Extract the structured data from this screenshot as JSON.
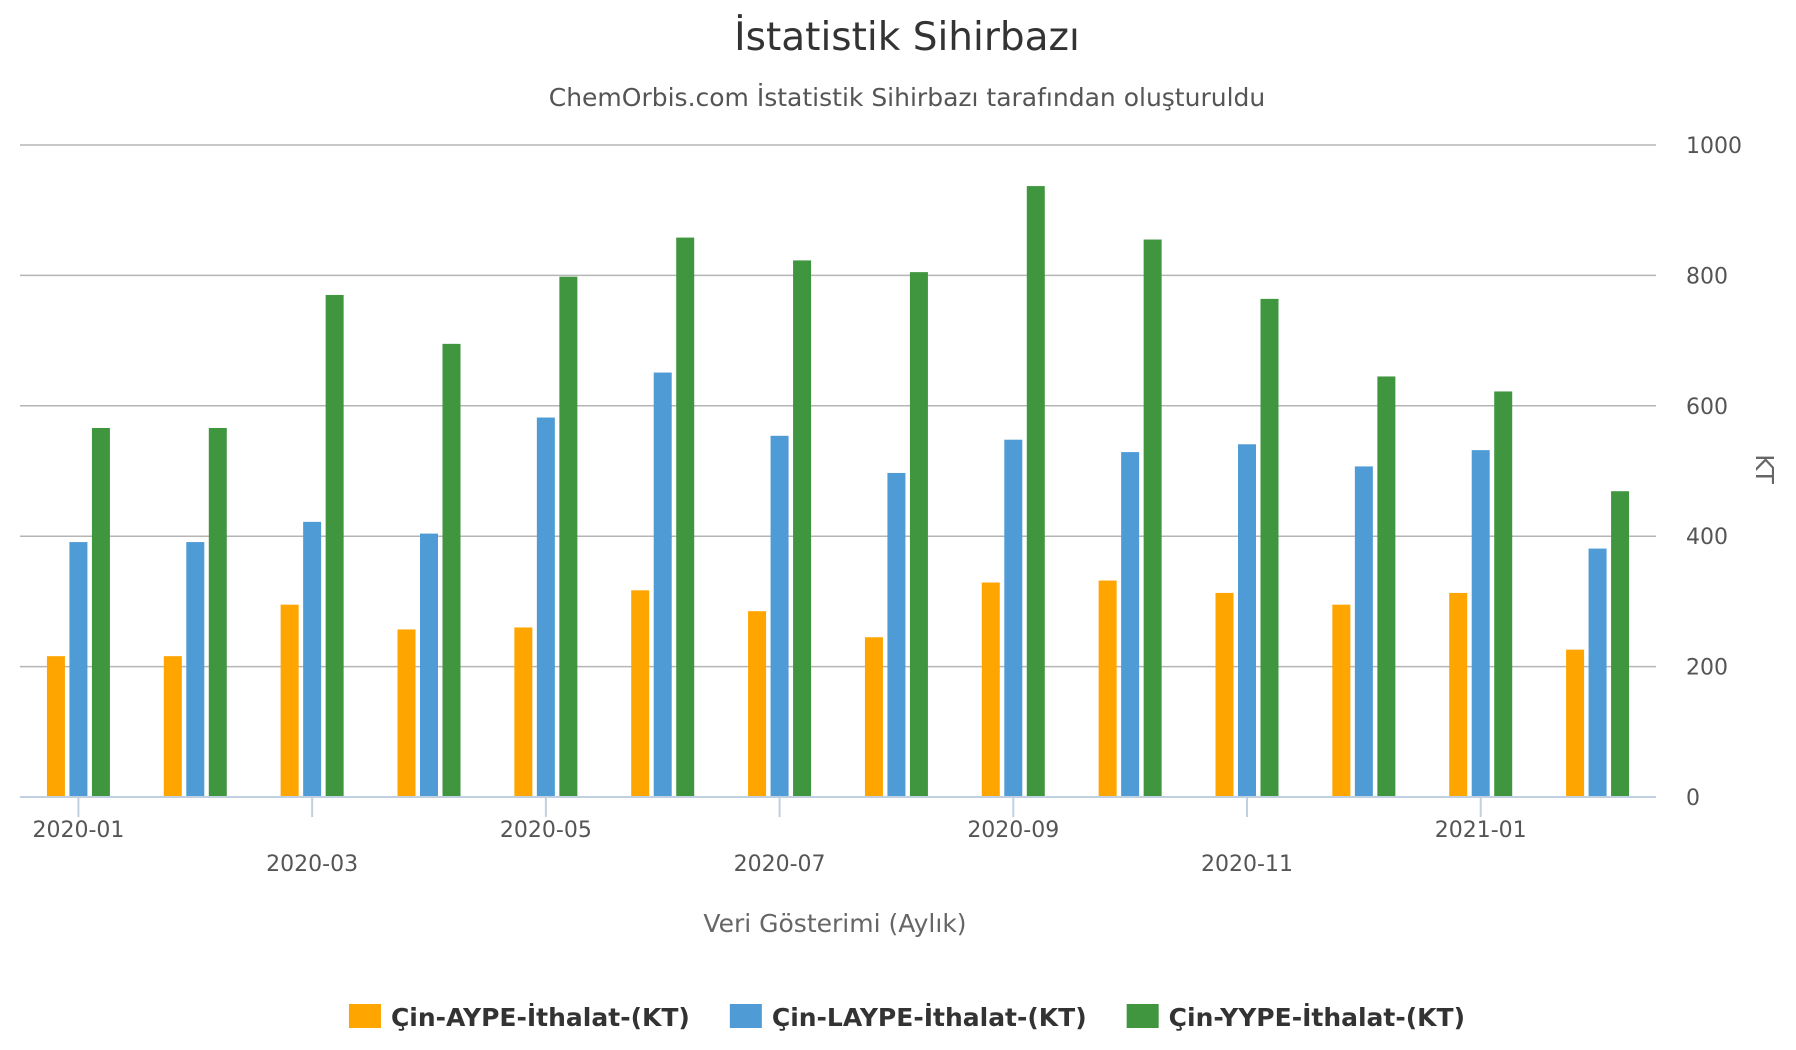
{
  "chart_data": {
    "type": "bar",
    "title": "İstatistik Sihirbazı",
    "subtitle": "ChemOrbis.com İstatistik Sihirbazı tarafından oluşturuldu",
    "xlabel": "Veri Gösterimi (Aylık)",
    "ylabel": "KT",
    "ylim": [
      0,
      1000
    ],
    "yticks": [
      0,
      200,
      400,
      600,
      800,
      1000
    ],
    "y_axis_side": "right",
    "grid": true,
    "legend_position": "bottom",
    "categories": [
      "2020-01",
      "2020-02",
      "2020-03",
      "2020-04",
      "2020-05",
      "2020-06",
      "2020-07",
      "2020-08",
      "2020-09",
      "2020-10",
      "2020-11",
      "2020-12",
      "2021-01",
      "2021-02"
    ],
    "xtick_labels": [
      "2020-01",
      "2020-03",
      "2020-05",
      "2020-07",
      "2020-09",
      "2020-11",
      "2021-01"
    ],
    "series": [
      {
        "name": "Çin-AYPE-İthalat-(KT)",
        "color": "#ffa500",
        "values": [
          216,
          216,
          295,
          257,
          260,
          317,
          285,
          245,
          329,
          332,
          313,
          295,
          313,
          226
        ]
      },
      {
        "name": "Çin-LAYPE-İthalat-(KT)",
        "color": "#4f9bd6",
        "values": [
          391,
          391,
          422,
          404,
          582,
          651,
          554,
          497,
          548,
          529,
          541,
          507,
          532,
          381
        ]
      },
      {
        "name": "Çin-YYPE-İthalat-(KT)",
        "color": "#3f963f",
        "values": [
          566,
          566,
          770,
          695,
          798,
          858,
          823,
          805,
          937,
          855,
          764,
          645,
          622,
          469
        ]
      }
    ]
  }
}
